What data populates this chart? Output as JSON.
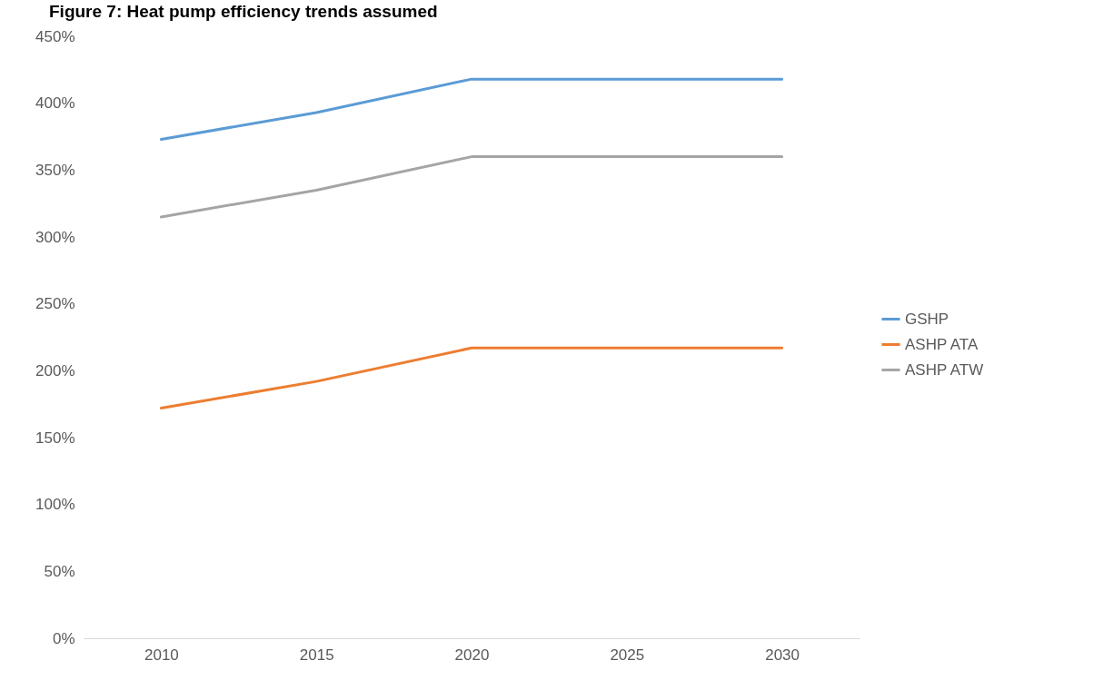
{
  "chart_data": {
    "type": "line",
    "title": "Figure 7: Heat pump efficiency trends assumed",
    "categories": [
      "2010",
      "2015",
      "2020",
      "2025",
      "2030"
    ],
    "series": [
      {
        "name": "GSHP",
        "color": "#5b9bd5",
        "values": [
          373,
          393,
          418,
          418,
          418
        ]
      },
      {
        "name": "ASHP ATA",
        "color": "#ed7d31",
        "values": [
          172,
          192,
          217,
          217,
          217
        ]
      },
      {
        "name": "ASHP ATW",
        "color": "#a5a5a5",
        "values": [
          315,
          335,
          360,
          360,
          360
        ]
      }
    ],
    "ylim": [
      0,
      450
    ],
    "yticks": [
      {
        "value": 0,
        "label": "0%"
      },
      {
        "value": 50,
        "label": "50%"
      },
      {
        "value": 100,
        "label": "100%"
      },
      {
        "value": 150,
        "label": "150%"
      },
      {
        "value": 200,
        "label": "200%"
      },
      {
        "value": 250,
        "label": "250%"
      },
      {
        "value": 300,
        "label": "300%"
      },
      {
        "value": 350,
        "label": "350%"
      },
      {
        "value": 400,
        "label": "400%"
      },
      {
        "value": 450,
        "label": "450%"
      }
    ],
    "legend": "right"
  }
}
